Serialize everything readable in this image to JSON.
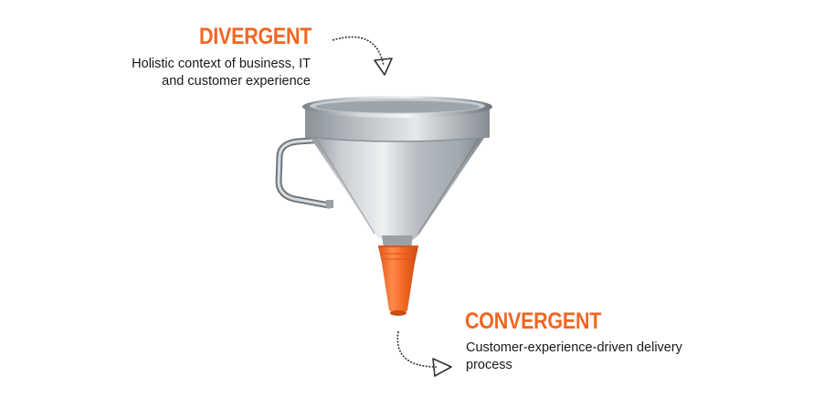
{
  "colors": {
    "accent": "#f26522",
    "text": "#1a1a1a",
    "arrow": "#333333"
  },
  "divergent": {
    "title": "DIVERGENT",
    "lines": [
      "Holistic context of business, IT",
      "and customer experience"
    ]
  },
  "convergent": {
    "title": "CONVERGENT",
    "lines": [
      "Customer-experience-driven delivery",
      "process"
    ]
  },
  "icons": {
    "funnel": "funnel-icon",
    "arrow_top": "curved-arrow-down-icon",
    "arrow_bottom": "curved-arrow-right-icon"
  }
}
